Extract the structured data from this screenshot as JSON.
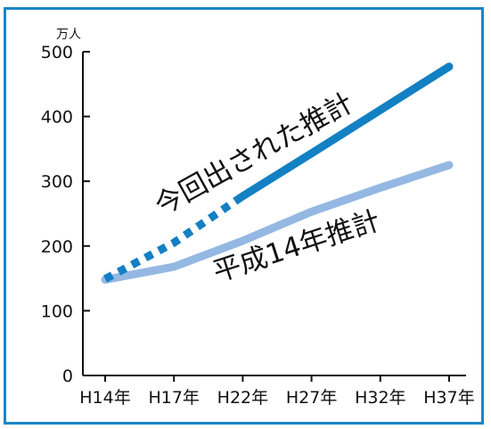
{
  "chart_data": {
    "type": "line",
    "unit": "万人",
    "categories": [
      "H14年",
      "H17年",
      "H22年",
      "H27年",
      "H32年",
      "H37年"
    ],
    "ylim": [
      0,
      500
    ],
    "yticks": [
      "0",
      "100",
      "200",
      "300",
      "400",
      "500"
    ],
    "grid": false,
    "series": [
      {
        "name": "今回出された推計",
        "color": "#1380c4",
        "values": [
          149,
          205,
          277,
          343,
          410,
          477
        ],
        "estimated_until_index": 2
      },
      {
        "name": "平成14年推計",
        "color": "#94b8e2",
        "values": [
          148,
          168,
          208,
          253,
          290,
          325
        ]
      }
    ]
  },
  "colors": {
    "frame": "#1a86c8",
    "axis": "#111111"
  }
}
